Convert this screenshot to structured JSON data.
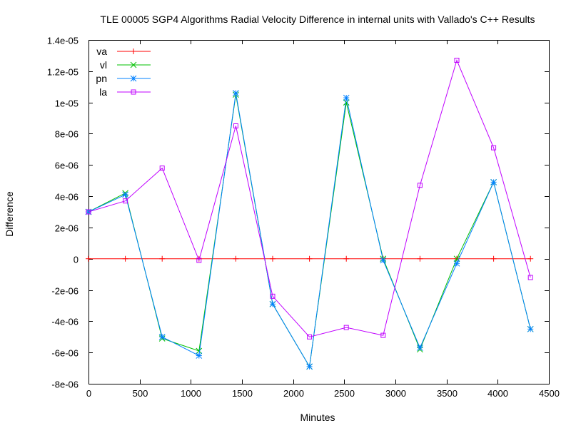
{
  "chart_data": {
    "type": "line",
    "title": "TLE 00005 SGP4 Algorithms Radial Velocity Difference in internal units with Vallado's C++ Results",
    "xlabel": "Minutes",
    "ylabel": "Difference",
    "xlim": [
      0,
      4500
    ],
    "ylim": [
      -8e-06,
      1.4e-05
    ],
    "x_ticks": [
      0,
      500,
      1000,
      1500,
      2000,
      2500,
      3000,
      3500,
      4000,
      4500
    ],
    "x_tick_labels": [
      "0",
      "500",
      "1000",
      "1500",
      "2000",
      "2500",
      "3000",
      "3500",
      "4000",
      "4500"
    ],
    "y_ticks": [
      -8e-06,
      -6e-06,
      -4e-06,
      -2e-06,
      0,
      2e-06,
      4e-06,
      6e-06,
      8e-06,
      1e-05,
      1.2e-05,
      1.4e-05
    ],
    "y_tick_labels": [
      "-8e-06",
      "-6e-06",
      "-4e-06",
      "-2e-06",
      "0",
      "2e-06",
      "4e-06",
      "6e-06",
      "8e-06",
      "1e-05",
      "1.2e-05",
      "1.4e-05"
    ],
    "grid": false,
    "legend_position": "top-left",
    "x": [
      0,
      360,
      720,
      1080,
      1440,
      1800,
      2160,
      2520,
      2880,
      3240,
      3600,
      3960,
      4320
    ],
    "series": [
      {
        "name": "va",
        "color": "#ff0000",
        "marker": "plus",
        "values": [
          0,
          0,
          0,
          0,
          0,
          0,
          0,
          0,
          0,
          0,
          0,
          0,
          0
        ]
      },
      {
        "name": "vl",
        "color": "#00c000",
        "marker": "cross",
        "values": [
          3e-06,
          4.2e-06,
          -5.1e-06,
          -5.9e-06,
          1.05e-05,
          -2.9e-06,
          -6.9e-06,
          1e-05,
          0,
          -5.8e-06,
          0,
          4.9e-06,
          -4.5e-06
        ]
      },
      {
        "name": "pn",
        "color": "#0080ff",
        "marker": "star",
        "values": [
          3e-06,
          4.1e-06,
          -5e-06,
          -6.2e-06,
          1.06e-05,
          -2.9e-06,
          -6.9e-06,
          1.03e-05,
          -1e-07,
          -5.7e-06,
          -3e-07,
          4.9e-06,
          -4.5e-06
        ]
      },
      {
        "name": "la",
        "color": "#c000ff",
        "marker": "square",
        "values": [
          3e-06,
          3.7e-06,
          5.8e-06,
          -1e-07,
          8.5e-06,
          -2.4e-06,
          -5e-06,
          -4.4e-06,
          -4.9e-06,
          4.7e-06,
          1.27e-05,
          7.1e-06,
          -1.2e-06
        ]
      }
    ]
  }
}
